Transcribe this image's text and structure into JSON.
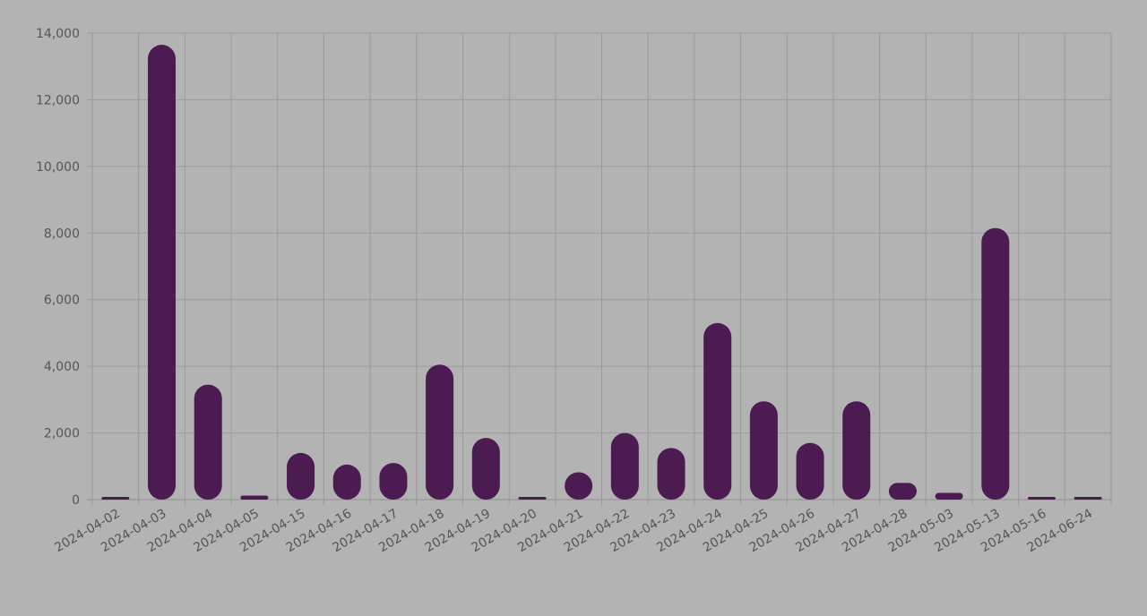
{
  "chart_data": {
    "type": "bar",
    "categories": [
      "2024-04-02",
      "2024-04-03",
      "2024-04-04",
      "2024-04-05",
      "2024-04-15",
      "2024-04-16",
      "2024-04-17",
      "2024-04-18",
      "2024-04-19",
      "2024-04-20",
      "2024-04-21",
      "2024-04-22",
      "2024-04-23",
      "2024-04-24",
      "2024-04-25",
      "2024-04-26",
      "2024-04-27",
      "2024-04-28",
      "2024-05-03",
      "2024-05-13",
      "2024-05-16",
      "2024-06-24"
    ],
    "values": [
      30,
      13650,
      3450,
      120,
      1400,
      1050,
      1100,
      4050,
      1850,
      10,
      820,
      2000,
      1550,
      5300,
      2950,
      1700,
      2950,
      500,
      200,
      8150,
      40,
      30
    ],
    "ylim": [
      0,
      14000
    ],
    "yticks": [
      0,
      2000,
      4000,
      6000,
      8000,
      10000,
      12000,
      14000
    ],
    "ytick_labels": [
      "0",
      "2,000",
      "4,000",
      "6,000",
      "8,000",
      "10,000",
      "12,000",
      "14,000"
    ],
    "grid": true,
    "bar_color": "#4b1b52",
    "background": "#b3b3b3"
  }
}
